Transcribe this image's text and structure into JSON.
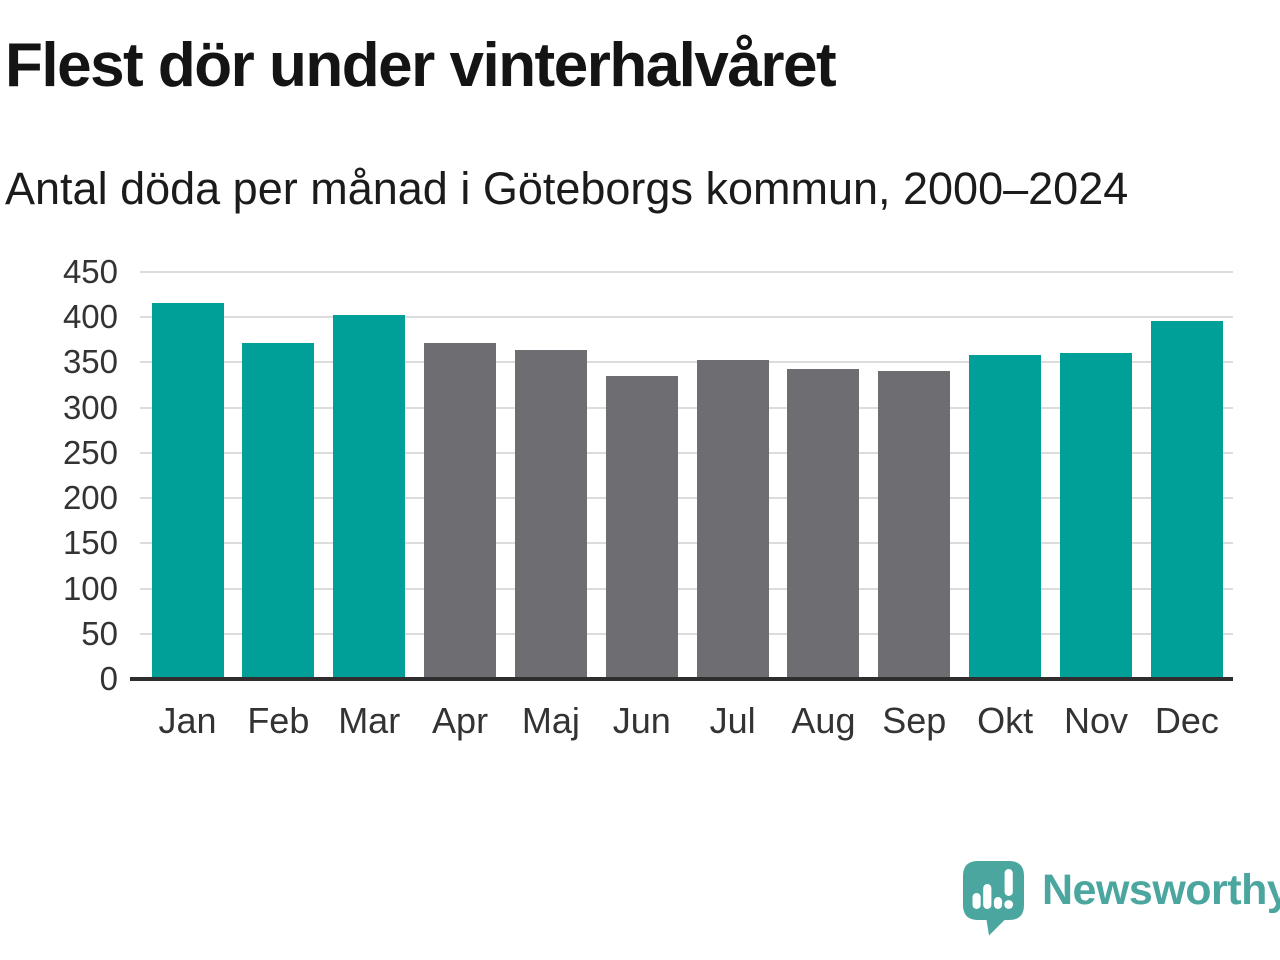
{
  "header": {
    "title": "Flest dör under vinterhalvåret",
    "subtitle": "Antal döda per månad i Göteborgs kommun, 2000–2024"
  },
  "chart_data": {
    "type": "bar",
    "title": "Flest dör under vinterhalvåret",
    "subtitle": "Antal döda per månad i Göteborgs kommun, 2000–2024",
    "xlabel": "",
    "ylabel": "",
    "categories": [
      "Jan",
      "Feb",
      "Mar",
      "Apr",
      "Maj",
      "Jun",
      "Jul",
      "Aug",
      "Sep",
      "Okt",
      "Nov",
      "Dec"
    ],
    "values": [
      416,
      372,
      402,
      371,
      364,
      335,
      353,
      343,
      341,
      358,
      360,
      396
    ],
    "series_color_keys": [
      "winter",
      "winter",
      "winter",
      "summer",
      "summer",
      "summer",
      "summer",
      "summer",
      "summer",
      "winter",
      "winter",
      "winter"
    ],
    "colors": {
      "winter": "#00A099",
      "summer": "#6E6E72"
    },
    "ylim": [
      0,
      450
    ],
    "yticks": [
      0,
      50,
      100,
      150,
      200,
      250,
      300,
      350,
      400,
      450
    ],
    "grid": true,
    "legend": false,
    "gridline_color": "#dcdcdc",
    "axis_line_color": "#2e2e2e",
    "tick_label_color": "#333333"
  },
  "footer": {
    "brand": "Newsworthy",
    "logo_icon": "newsworthy-speech-bubble-barchart-icon",
    "brand_color": "#4BA69F"
  }
}
